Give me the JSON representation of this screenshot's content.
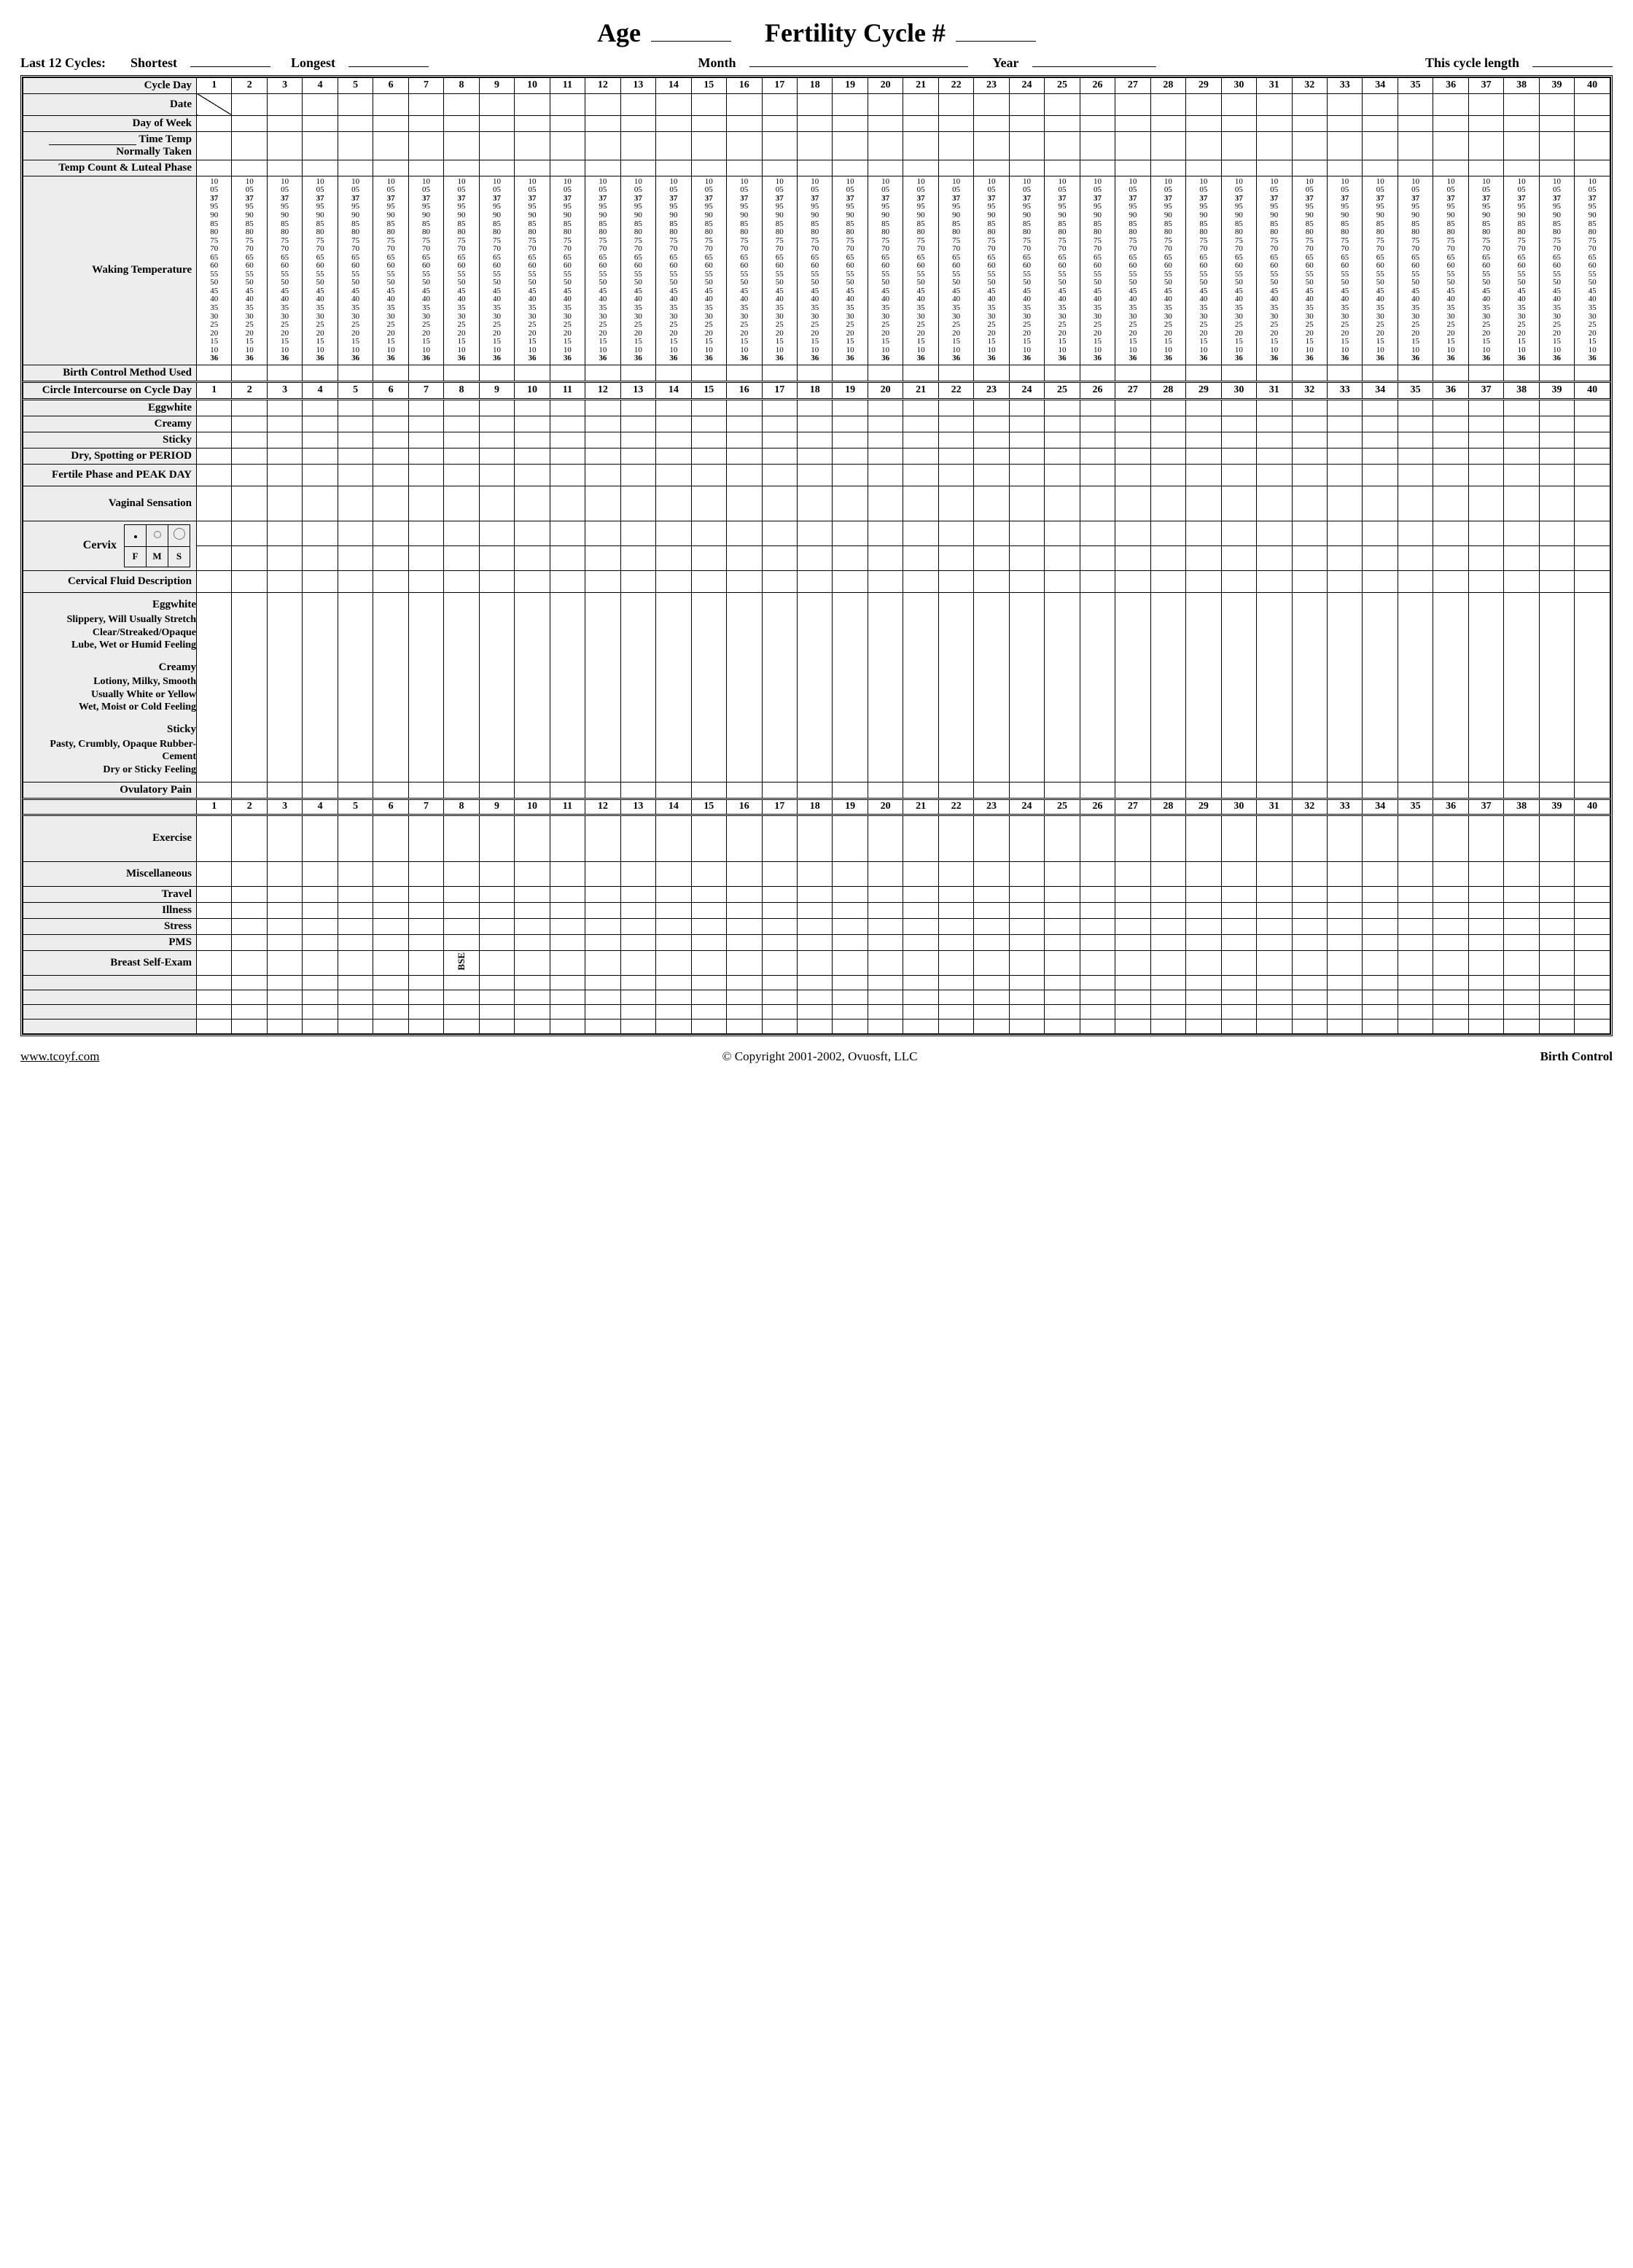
{
  "header": {
    "age_label": "Age",
    "cycle_no_label": "Fertility Cycle #",
    "last12_label": "Last 12 Cycles:",
    "shortest_label": "Shortest",
    "longest_label": "Longest",
    "month_label": "Month",
    "year_label": "Year",
    "this_cycle_len_label": "This cycle length"
  },
  "rows": {
    "cycle_day": "Cycle Day",
    "date": "Date",
    "dow": "Day of Week",
    "time_temp": "Time Temp",
    "normally_taken": "Normally Taken",
    "temp_count_luteal": "Temp Count & Luteal Phase",
    "waking_temp": "Waking Temperature",
    "birth_control_used": "Birth Control Method Used",
    "circle_intercourse": "Circle Intercourse on Cycle Day",
    "eggwhite": "Eggwhite",
    "creamy": "Creamy",
    "sticky": "Sticky",
    "dry_spot_period": "Dry, Spotting or PERIOD",
    "fertile_peak": "Fertile Phase and PEAK DAY",
    "vaginal_sensation": "Vaginal Sensation",
    "cervix": "Cervix",
    "cervical_fluid_desc": "Cervical Fluid Description",
    "ovulatory_pain": "Ovulatory Pain",
    "exercise": "Exercise",
    "miscellaneous": "Miscellaneous",
    "travel": "Travel",
    "illness": "Illness",
    "stress": "Stress",
    "pms": "PMS",
    "breast_self_exam": "Breast Self-Exam",
    "bse_marker": "BSE"
  },
  "cervix_keys": {
    "f": "F",
    "m": "M",
    "s": "S"
  },
  "cf_desc": {
    "eggwhite": {
      "title": "Eggwhite",
      "lines": [
        "Slippery, Will Usually Stretch",
        "Clear/Streaked/Opaque",
        "Lube, Wet or Humid Feeling"
      ]
    },
    "creamy": {
      "title": "Creamy",
      "lines": [
        "Lotiony, Milky, Smooth",
        "Usually White or Yellow",
        "Wet, Moist or Cold Feeling"
      ]
    },
    "sticky": {
      "title": "Sticky",
      "lines": [
        "Pasty, Crumbly, Opaque Rubber-",
        "Cement",
        "Dry or Sticky Feeling"
      ]
    }
  },
  "num_days": 40,
  "temp_scale": {
    "values": [
      "10",
      "05",
      "37",
      "95",
      "90",
      "85",
      "80",
      "75",
      "70",
      "65",
      "60",
      "55",
      "50",
      "45",
      "40",
      "35",
      "30",
      "25",
      "20",
      "15",
      "10",
      "36"
    ],
    "bold_indices": [
      2,
      21
    ]
  },
  "footer": {
    "url": "www.tcoyf.com",
    "copyright": "© Copyright 2001-2002, Ovuosft, LLC",
    "right": "Birth Control"
  },
  "style": {
    "bg": "#ffffff",
    "label_bg": "#ededed",
    "line": "#000000",
    "font": "Times New Roman"
  }
}
